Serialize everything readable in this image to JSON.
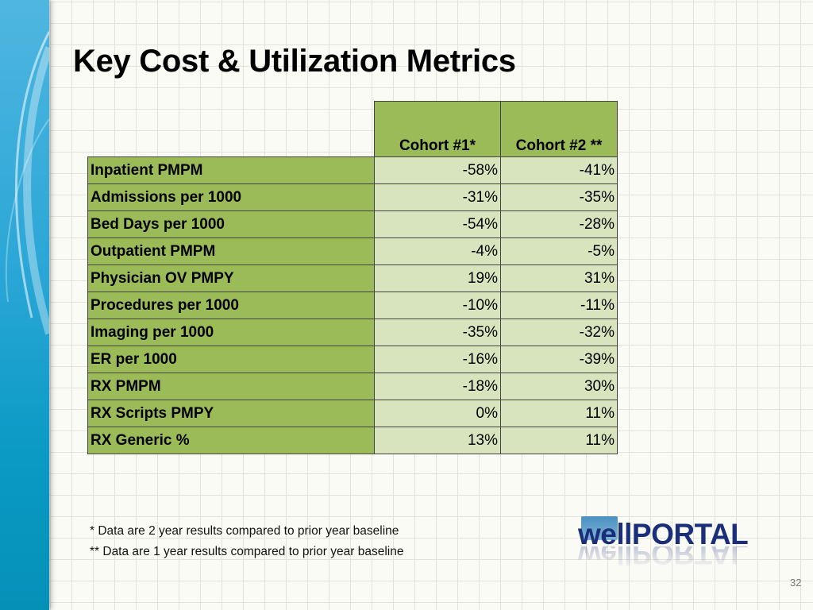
{
  "slide": {
    "title": "Key Cost & Utilization Metrics",
    "page_number": "32"
  },
  "table": {
    "headers": [
      "",
      "Cohort #1*",
      "Cohort #2 **"
    ],
    "rows": [
      {
        "metric": "Inpatient PMPM",
        "cohort1": "-58%",
        "cohort2": "-41%"
      },
      {
        "metric": "Admissions per 1000",
        "cohort1": "-31%",
        "cohort2": "-35%"
      },
      {
        "metric": "Bed Days per 1000",
        "cohort1": "-54%",
        "cohort2": "-28%"
      },
      {
        "metric": "Outpatient PMPM",
        "cohort1": "-4%",
        "cohort2": "-5%"
      },
      {
        "metric": "Physician OV PMPY",
        "cohort1": "19%",
        "cohort2": "31%"
      },
      {
        "metric": "Procedures per 1000",
        "cohort1": "-10%",
        "cohort2": "-11%"
      },
      {
        "metric": "Imaging per 1000",
        "cohort1": "-35%",
        "cohort2": "-32%"
      },
      {
        "metric": "ER per 1000",
        "cohort1": "-16%",
        "cohort2": "-39%"
      },
      {
        "metric": "RX PMPM",
        "cohort1": "-18%",
        "cohort2": "30%"
      },
      {
        "metric": "RX Scripts PMPY",
        "cohort1": "0%",
        "cohort2": "11%"
      },
      {
        "metric": "RX Generic %",
        "cohort1": "13%",
        "cohort2": "11%"
      }
    ]
  },
  "footnotes": [
    "* Data are 2 year results compared to prior year baseline",
    "** Data are 1 year results compared to prior year baseline"
  ],
  "logo": {
    "text_well": "well",
    "text_portal": "PORTAL"
  },
  "colors": {
    "header_green": "#9bbb59",
    "value_green": "#d7e4bd",
    "sidebar_blue": "#2aa6d6",
    "logo_navy": "#1a2e7a"
  }
}
